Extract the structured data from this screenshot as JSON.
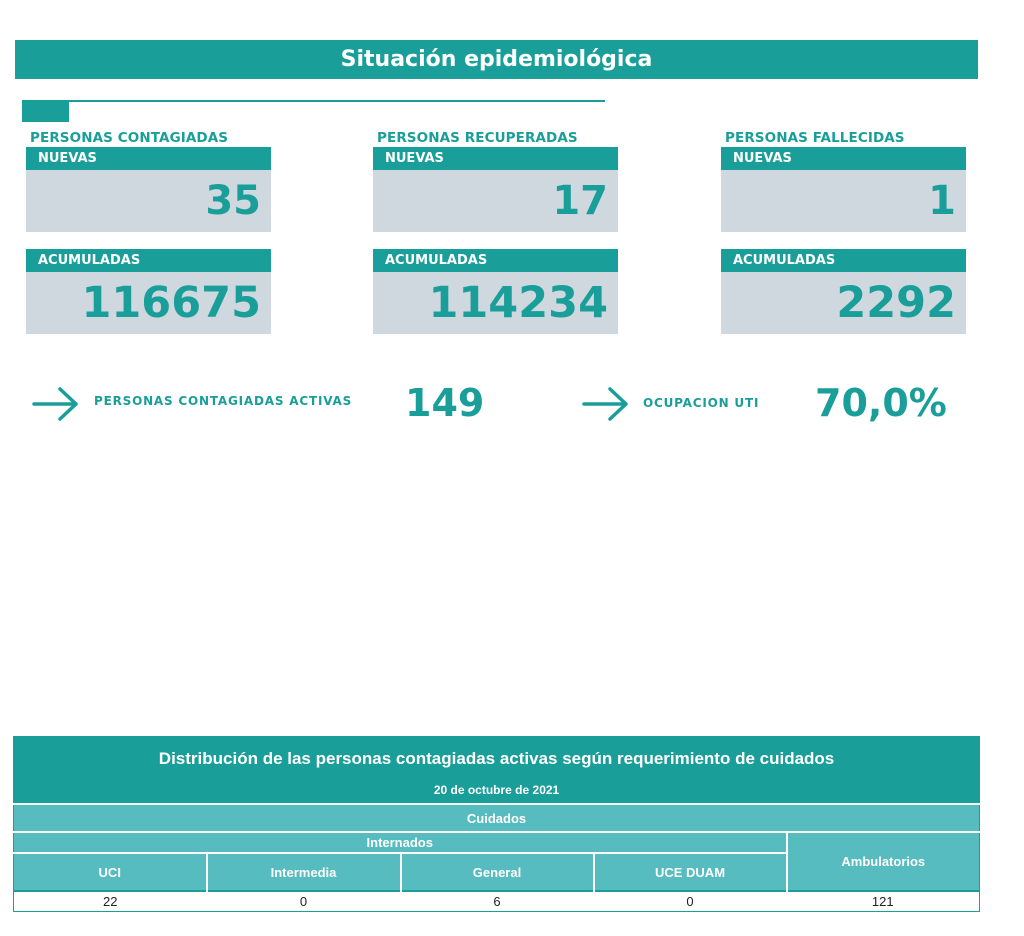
{
  "header": {
    "title": "Situación epidemiológica"
  },
  "groups": {
    "contagiadas": {
      "label": "PERSONAS CONTAGIADAS",
      "new_label": "NUEVAS",
      "new_value": "35",
      "cum_label": "ACUMULADAS",
      "cum_value": "116675"
    },
    "recuperadas": {
      "label": "PERSONAS RECUPERADAS",
      "new_label": "NUEVAS",
      "new_value": "17",
      "cum_label": "ACUMULADAS",
      "cum_value": "114234"
    },
    "fallecidas": {
      "label": "PERSONAS FALLECIDAS",
      "new_label": "NUEVAS",
      "new_value": "1",
      "cum_label": "ACUMULADAS",
      "cum_value": "2292"
    }
  },
  "kpis": {
    "activas": {
      "label": "PERSONAS CONTAGIADAS ACTIVAS",
      "value": "149",
      "icon": "arrow-right-icon"
    },
    "uti": {
      "label": "OCUPACION UTI",
      "value": "70,0%",
      "icon": "arrow-right-icon"
    }
  },
  "table": {
    "title": "Distribución de las personas contagiadas activas según requerimiento de cuidados",
    "date": "20 de octubre de 2021",
    "cuidados": "Cuidados",
    "internados": "Internados",
    "columns": [
      "UCI",
      "Intermedia",
      "General",
      "UCE DUAM"
    ],
    "ambulatorios": "Ambulatorios",
    "values": [
      "22",
      "0",
      "6",
      "0",
      "121"
    ]
  },
  "colors": {
    "accent": "#1a9e99",
    "light_accent": "#57bcc0",
    "box_bg": "#d0d8df"
  }
}
